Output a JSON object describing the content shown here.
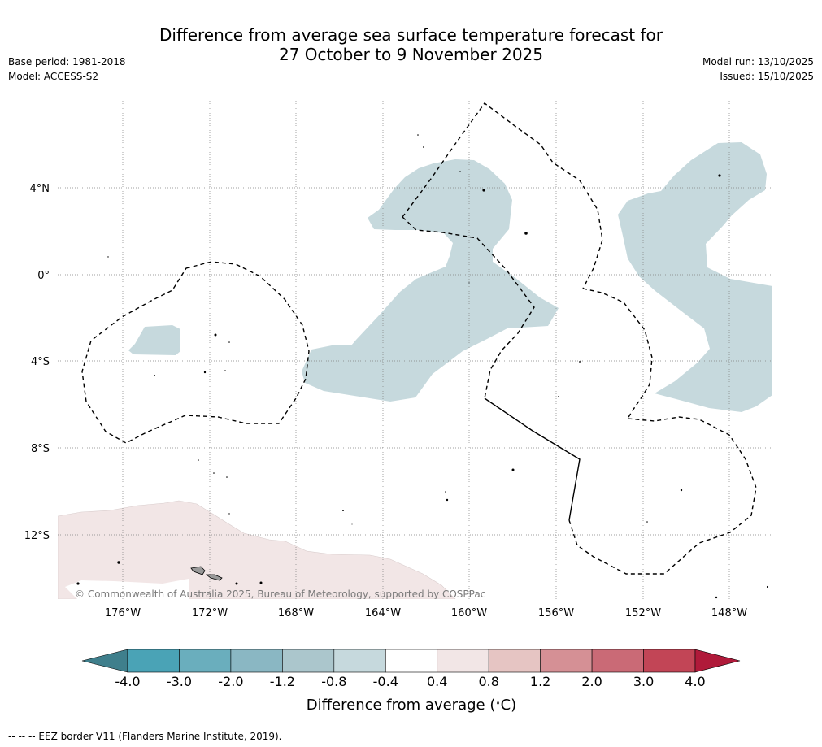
{
  "header": {
    "title_line1": "Difference from average sea surface temperature forecast for",
    "title_line2": "27 October to 9 November 2025",
    "base_period": "Base period: 1981-2018",
    "model": "Model: ACCESS-S2",
    "model_run": "Model run: 13/10/2025",
    "issued": "Issued: 15/10/2025"
  },
  "map": {
    "lat_labels": [
      "4°N",
      "0°",
      "4°S",
      "8°S",
      "12°S"
    ],
    "lon_labels": [
      "176°W",
      "172°W",
      "168°W",
      "164°W",
      "160°W",
      "156°W",
      "152°W",
      "148°W"
    ],
    "copyright": "© Commonwealth of Australia 2025, Bureau of Meteorology, supported by COSPPac",
    "colors": {
      "cool_anomaly": "#c6d9dd",
      "warm_anomaly": "#f2e6e6",
      "land": "#999999"
    }
  },
  "colorbar": {
    "ticks": [
      "-4.0",
      "-3.0",
      "-2.0",
      "-1.2",
      "-0.8",
      "-0.4",
      "0.4",
      "0.8",
      "1.2",
      "2.0",
      "3.0",
      "4.0"
    ],
    "colors": [
      "#3f7f8c",
      "#4aa3b6",
      "#6aaebd",
      "#8ab7c3",
      "#abc6cc",
      "#c6d9dd",
      "#ffffff",
      "#f2e6e6",
      "#e6c5c3",
      "#d59095",
      "#ca6a76",
      "#c24556",
      "#b01a3a"
    ],
    "label": "Difference from average (°C)"
  },
  "footnote": "-- -- -- EEZ border V11 (Flanders Marine Institute, 2019)."
}
